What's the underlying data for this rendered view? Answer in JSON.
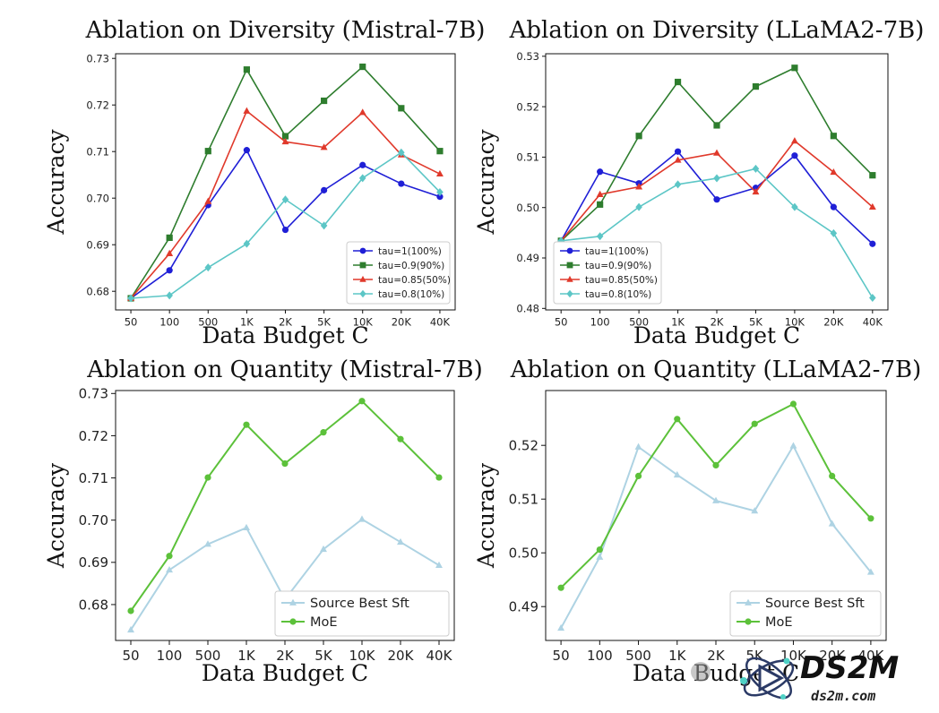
{
  "chart_data": [
    {
      "type": "line",
      "title": "Ablation on Diversity (Mistral-7B)",
      "xlabel": "Data Budget C",
      "ylabel": "Accuracy",
      "categories": [
        "50",
        "100",
        "500",
        "1K",
        "2K",
        "5K",
        "10K",
        "20K",
        "40K"
      ],
      "ylim": [
        0.676,
        0.731
      ],
      "yticks": [
        0.68,
        0.69,
        0.7,
        0.71,
        0.72,
        0.73
      ],
      "ytick_labels": [
        "0.68",
        "0.69",
        "0.70",
        "0.71",
        "0.72",
        "0.73"
      ],
      "legend_position": "lower-right",
      "series": [
        {
          "name": "tau=1(100%)",
          "color": "#1f1fd6",
          "marker": "circle",
          "values": [
            0.6785,
            0.6845,
            0.6985,
            0.7103,
            0.6932,
            0.7017,
            0.7071,
            0.7031,
            0.7003
          ]
        },
        {
          "name": "tau=0.9(90%)",
          "color": "#2e7d2e",
          "marker": "square",
          "values": [
            0.6785,
            0.6915,
            0.7101,
            0.7276,
            0.7133,
            0.7209,
            0.7282,
            0.7193,
            0.7101
          ]
        },
        {
          "name": "tau=0.85(50%)",
          "color": "#e0392b",
          "marker": "triangle",
          "values": [
            0.6785,
            0.6881,
            0.6993,
            0.7187,
            0.7121,
            0.7109,
            0.7184,
            0.7093,
            0.7052
          ]
        },
        {
          "name": "tau=0.8(10%)",
          "color": "#5cc6c6",
          "marker": "diamond",
          "values": [
            0.6785,
            0.6791,
            0.6851,
            0.6902,
            0.6997,
            0.6941,
            0.7043,
            0.7098,
            0.7013
          ]
        }
      ]
    },
    {
      "type": "line",
      "title": "Ablation on Diversity (LLaMA2-7B)",
      "xlabel": "Data Budget C",
      "ylabel": "Accuracy",
      "categories": [
        "50",
        "100",
        "500",
        "1K",
        "2K",
        "5K",
        "10K",
        "20K",
        "40K"
      ],
      "ylim": [
        0.4797,
        0.5305
      ],
      "yticks": [
        0.48,
        0.49,
        0.5,
        0.51,
        0.52,
        0.53
      ],
      "ytick_labels": [
        "0.48",
        "0.49",
        "0.50",
        "0.51",
        "0.52",
        "0.53"
      ],
      "legend_position": "lower-left",
      "series": [
        {
          "name": "tau=1(100%)",
          "color": "#1f1fd6",
          "marker": "circle",
          "values": [
            0.4934,
            0.5071,
            0.5048,
            0.5111,
            0.5016,
            0.5039,
            0.5103,
            0.5001,
            0.4928
          ]
        },
        {
          "name": "tau=0.9(90%)",
          "color": "#2e7d2e",
          "marker": "square",
          "values": [
            0.4934,
            0.5006,
            0.5142,
            0.5249,
            0.5163,
            0.524,
            0.5277,
            0.5142,
            0.5064
          ]
        },
        {
          "name": "tau=0.85(50%)",
          "color": "#e0392b",
          "marker": "triangle",
          "values": [
            0.4934,
            0.5026,
            0.5041,
            0.5094,
            0.5108,
            0.5031,
            0.5132,
            0.507,
            0.5001
          ]
        },
        {
          "name": "tau=0.8(10%)",
          "color": "#5cc6c6",
          "marker": "diamond",
          "values": [
            0.4934,
            0.4943,
            0.5001,
            0.5046,
            0.5058,
            0.5077,
            0.5001,
            0.4949,
            0.4821
          ]
        }
      ]
    },
    {
      "type": "line",
      "title": "Ablation on Quantity (Mistral-7B)",
      "xlabel": "Data Budget C",
      "ylabel": "Accuracy",
      "categories": [
        "50",
        "100",
        "500",
        "1K",
        "2K",
        "5K",
        "10K",
        "20K",
        "40K"
      ],
      "ylim": [
        0.6715,
        0.7307
      ],
      "yticks": [
        0.68,
        0.69,
        0.7,
        0.71,
        0.72,
        0.73
      ],
      "ytick_labels": [
        "0.68",
        "0.69",
        "0.70",
        "0.71",
        "0.72",
        "0.73"
      ],
      "legend_position": "lower-right",
      "series": [
        {
          "name": "Source Best Sft",
          "color": "#aed3e3",
          "marker": "triangle",
          "values": [
            0.674,
            0.6882,
            0.6943,
            0.6982,
            0.6812,
            0.6931,
            0.7002,
            0.6948,
            0.6893
          ]
        },
        {
          "name": "MoE",
          "color": "#5cc13a",
          "marker": "circle",
          "values": [
            0.6785,
            0.6915,
            0.7101,
            0.7226,
            0.7134,
            0.7208,
            0.7282,
            0.7192,
            0.7101
          ]
        }
      ]
    },
    {
      "type": "line",
      "title": "Ablation on Quantity (LLaMA2-7B)",
      "xlabel": "Data Budget C",
      "ylabel": "Accuracy",
      "categories": [
        "50",
        "100",
        "500",
        "1K",
        "2K",
        "5K",
        "10K",
        "20K",
        "40K"
      ],
      "ylim": [
        0.4837,
        0.5302
      ],
      "yticks": [
        0.49,
        0.5,
        0.51,
        0.52
      ],
      "ytick_labels": [
        "0.49",
        "0.50",
        "0.51",
        "0.52"
      ],
      "legend_position": "lower-right",
      "series": [
        {
          "name": "Source Best Sft",
          "color": "#aed3e3",
          "marker": "triangle",
          "values": [
            0.486,
            0.4992,
            0.5197,
            0.5145,
            0.5097,
            0.5078,
            0.5199,
            0.5054,
            0.4964
          ]
        },
        {
          "name": "MoE",
          "color": "#5cc13a",
          "marker": "circle",
          "values": [
            0.4935,
            0.5006,
            0.5143,
            0.5249,
            0.5163,
            0.524,
            0.5277,
            0.5143,
            0.5064
          ]
        }
      ]
    }
  ],
  "watermark": {
    "brand": "DS2M",
    "url": "ds2m.com",
    "accent": "#4fd1c5"
  }
}
